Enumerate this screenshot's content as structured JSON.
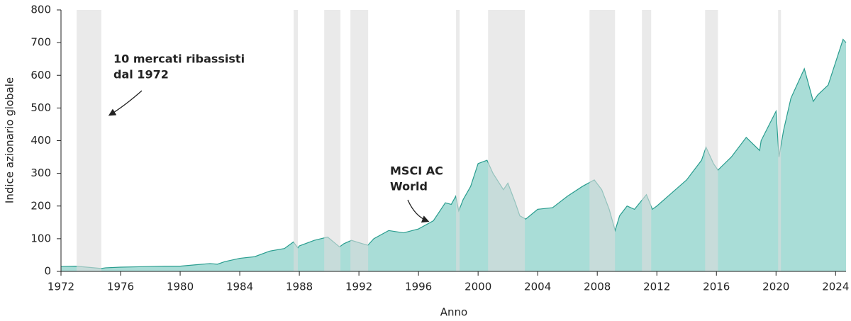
{
  "chart_data": {
    "type": "area",
    "xlabel": "Anno",
    "ylabel": "Indice azionario globale",
    "xlim": [
      1972,
      2024.7
    ],
    "ylim": [
      0,
      800
    ],
    "xticks": [
      1972,
      1976,
      1980,
      1984,
      1988,
      1992,
      1996,
      2000,
      2004,
      2008,
      2012,
      2016,
      2020,
      2024
    ],
    "yticks": [
      0,
      100,
      200,
      300,
      400,
      500,
      600,
      700,
      800
    ],
    "bear_markets": [
      [
        1973.05,
        1974.71
      ],
      [
        1987.62,
        1987.9
      ],
      [
        1989.67,
        1990.76
      ],
      [
        1991.43,
        1992.62
      ],
      [
        1998.52,
        1998.76
      ],
      [
        2000.67,
        2003.14
      ],
      [
        2007.48,
        2009.19
      ],
      [
        2011.0,
        2011.62
      ],
      [
        2015.24,
        2016.1
      ],
      [
        2020.14,
        2020.33
      ]
    ],
    "band_color": "#dcdcdc",
    "annotations": [
      [
        "10 mercati ribassisti",
        "dal 1972"
      ],
      [
        "MSCI AC",
        "World"
      ]
    ],
    "series": [
      {
        "name": "MSCI AC World",
        "color": "#2a9d8f",
        "fill": "#a9ddd7",
        "x": [
          1972,
          1973,
          1974,
          1974.7,
          1975,
          1976,
          1977,
          1978,
          1979,
          1980,
          1981,
          1982,
          1982.5,
          1983,
          1984,
          1985,
          1986,
          1987,
          1987.6,
          1987.9,
          1988,
          1989,
          1989.9,
          1990.7,
          1991,
          1991.5,
          1992,
          1992.6,
          1993,
          1994,
          1995,
          1996,
          1997,
          1997.8,
          1998.2,
          1998.5,
          1998.7,
          1999,
          1999.5,
          2000,
          2000.6,
          2001,
          2001.7,
          2002,
          2002.5,
          2002.8,
          2003.2,
          2004,
          2005,
          2006,
          2007,
          2007.8,
          2008.3,
          2008.8,
          2009.2,
          2009.5,
          2010,
          2010.5,
          2011.3,
          2011.7,
          2012,
          2013,
          2014,
          2015,
          2015.3,
          2015.8,
          2016.1,
          2017,
          2018,
          2018.9,
          2019,
          2020,
          2020.2,
          2020.5,
          2021,
          2021.9,
          2022.5,
          2022.8,
          2023.5,
          2024,
          2024.5,
          2024.7
        ],
        "values": [
          15,
          16,
          12,
          9,
          11,
          13,
          14,
          15,
          16,
          16,
          20,
          24,
          22,
          30,
          40,
          45,
          62,
          70,
          90,
          72,
          78,
          95,
          105,
          75,
          85,
          95,
          88,
          80,
          100,
          125,
          118,
          130,
          155,
          210,
          205,
          230,
          185,
          220,
          260,
          330,
          340,
          300,
          250,
          270,
          210,
          170,
          160,
          190,
          195,
          230,
          260,
          280,
          250,
          190,
          125,
          170,
          200,
          190,
          235,
          190,
          200,
          240,
          280,
          340,
          380,
          330,
          310,
          350,
          410,
          370,
          400,
          490,
          350,
          430,
          530,
          620,
          520,
          540,
          570,
          640,
          710,
          700
        ]
      }
    ]
  }
}
